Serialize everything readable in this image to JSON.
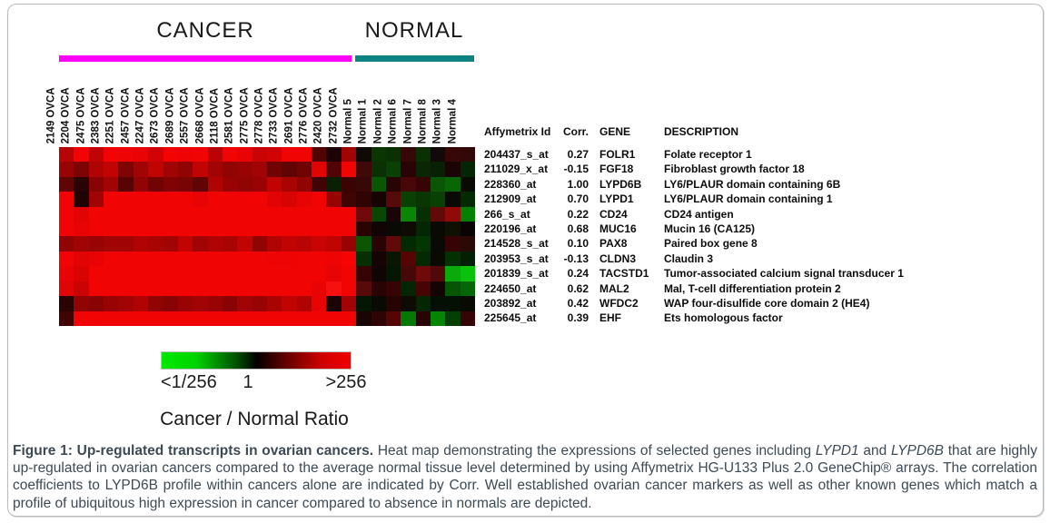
{
  "figure": {
    "group_labels": {
      "cancer": "CANCER",
      "normal": "NORMAL"
    },
    "group_colors": {
      "cancer_bar": "#ff00ff",
      "normal_bar": "#0f8282"
    },
    "table": {
      "headers": [
        "Affymetrix Id",
        "Corr.",
        "GENE",
        "DESCRIPTION"
      ],
      "rows": [
        {
          "id": "204437_s_at",
          "corr": "0.27",
          "gene": "FOLR1",
          "description": "Folate receptor 1"
        },
        {
          "id": "211029_x_at",
          "corr": "-0.15",
          "gene": "FGF18",
          "description": "Fibroblast growth factor 18"
        },
        {
          "id": "228360_at",
          "corr": "1.00",
          "gene": "LYPD6B",
          "description": "LY6/PLAUR domain containing 6B"
        },
        {
          "id": "212909_at",
          "corr": "0.70",
          "gene": "LYPD1",
          "description": "LY6/PLAUR domain containing 1"
        },
        {
          "id": "266_s_at",
          "corr": "0.22",
          "gene": "CD24",
          "description": "CD24 antigen"
        },
        {
          "id": "220196_at",
          "corr": "0.68",
          "gene": "MUC16",
          "description": "Mucin 16 (CA125)"
        },
        {
          "id": "214528_s_at",
          "corr": "0.10",
          "gene": "PAX8",
          "description": "Paired box gene 8"
        },
        {
          "id": "203953_s_at",
          "corr": "-0.13",
          "gene": "CLDN3",
          "description": "Claudin 3"
        },
        {
          "id": "201839_s_at",
          "corr": "0.24",
          "gene": "TACSTD1",
          "description": "Tumor-associated calcium signal transducer 1"
        },
        {
          "id": "224650_at",
          "corr": "0.62",
          "gene": "MAL2",
          "description": "Mal, T-cell differentiation protein 2"
        },
        {
          "id": "203892_at",
          "corr": "0.42",
          "gene": "WFDC2",
          "description": "WAP four-disulfide core domain 2 (HE4)"
        },
        {
          "id": "225645_at",
          "corr": "0.39",
          "gene": "EHF",
          "description": "Ets homologous factor"
        }
      ]
    },
    "scale": {
      "left_label": "<1/256",
      "mid_label": "1",
      "right_label": ">256",
      "title": "Cancer / Normal Ratio",
      "gradient": [
        "#00e800 0%",
        "#00d400 18%",
        "#004d00 40%",
        "#000000 50%",
        "#4d0000 62%",
        "#cc0000 84%",
        "#f20000 100%"
      ]
    },
    "caption": {
      "segments": [
        {
          "text": "Figure 1: Up-regulated transcripts in ovarian cancers.",
          "style": "bold"
        },
        {
          "text": " Heat map demonstrating the expressions of selected genes including ",
          "style": "normal"
        },
        {
          "text": "LYPD1",
          "style": "italic"
        },
        {
          "text": " and ",
          "style": "normal"
        },
        {
          "text": "LYPD6B",
          "style": "italic"
        },
        {
          "text": " that are highly up-regulated in ovarian cancers compared to the average normal tissue level determined by using Affymetrix HG-U133 Plus 2.0 GeneChip® arrays. The correlation coefficients to LYPD6B profile within cancers alone are indicated by Corr. Well established ovarian cancer markers as well as other known genes which match a profile of ubiquitous high expression in cancer compared to absence in normals are depicted.",
          "style": "normal"
        }
      ]
    }
  },
  "chart_data": {
    "type": "heatmap",
    "columns": [
      "2149 OVCA",
      "2204 OVCA",
      "2475 OVCA",
      "2383 OVCA",
      "2251 OVCA",
      "2457 OVCA",
      "2247 OVCA",
      "2673 OVCA",
      "2689 OVCA",
      "2557 OVCA",
      "2668 OVCA",
      "2118 OVCA",
      "2581 OVCA",
      "2775 OVCA",
      "2778 OVCA",
      "2733 OVCA",
      "2691 OVCA",
      "2776 OVCA",
      "2420 OVCA",
      "2732 OVCA",
      "Normal 5",
      "Normal 1",
      "Normal 2",
      "Normal 6",
      "Normal 7",
      "Normal 8",
      "Normal 3",
      "Normal 4"
    ],
    "column_groups": {
      "CANCER": 20,
      "NORMAL": 8
    },
    "rows": [
      "FOLR1",
      "FGF18",
      "LYPD6B",
      "LYPD1",
      "CD24",
      "MUC16",
      "PAX8",
      "CLDN3",
      "TACSTD1",
      "MAL2",
      "WFDC2",
      "EHF"
    ],
    "value_scale": {
      "min_label": "<1/256",
      "center_label": "1",
      "max_label": ">256",
      "title": "Cancer / Normal Ratio",
      "low_color": "#00e800",
      "mid_color": "#000000",
      "high_color": "#f20000"
    },
    "cell_colors": [
      [
        "#b80404",
        "#f20404",
        "#c00404",
        "#f20404",
        "#ee0404",
        "#e80404",
        "#d00404",
        "#f20404",
        "#ee0404",
        "#f00404",
        "#b80404",
        "#f00404",
        "#e80404",
        "#c80404",
        "#d00404",
        "#f00404",
        "#f00404",
        "#500404",
        "#1c0404",
        "#a00404",
        "#100a04",
        "#0a3604",
        "#0a3004",
        "#380808",
        "#0a3004",
        "#120a0a",
        "#380808",
        "#320808"
      ],
      [
        "#980404",
        "#7c0404",
        "#b00404",
        "#c00404",
        "#800404",
        "#a00404",
        "#c00404",
        "#a00404",
        "#900404",
        "#c00404",
        "#a00404",
        "#900404",
        "#980404",
        "#a00404",
        "#700404",
        "#600404",
        "#700404",
        "#e00404",
        "#500404",
        "#f00404",
        "#400808",
        "#0a3004",
        "#0a4004",
        "#2a0404",
        "#0a2604",
        "#0a2004",
        "#1a0404",
        "#042604"
      ],
      [
        "#600404",
        "#2a0404",
        "#880404",
        "#a00404",
        "#580404",
        "#900404",
        "#700404",
        "#800404",
        "#780404",
        "#600404",
        "#b00404",
        "#980404",
        "#900404",
        "#980404",
        "#c00404",
        "#a80404",
        "#900404",
        "#400404",
        "#0a2004",
        "#3a0404",
        "#360808",
        "#0a5604",
        "#280404",
        "#460808",
        "#360404",
        "#0a5604",
        "#0a6604",
        "#0a0a04"
      ],
      [
        "#f00404",
        "#200404",
        "#a00404",
        "#f00404",
        "#f00404",
        "#f00404",
        "#f00404",
        "#f00404",
        "#f00404",
        "#e80404",
        "#f00404",
        "#f00404",
        "#f00404",
        "#f00404",
        "#e00404",
        "#d80404",
        "#e80404",
        "#f00404",
        "#980404",
        "#400404",
        "#300404",
        "#160404",
        "#560a0a",
        "#0a4004",
        "#0a3604",
        "#0a4004",
        "#0a0a04",
        "#042a04"
      ],
      [
        "#f00404",
        "#e00404",
        "#f00404",
        "#f00404",
        "#f00404",
        "#f00404",
        "#f00404",
        "#f00404",
        "#f00404",
        "#f00404",
        "#f00404",
        "#f00404",
        "#f00404",
        "#f00404",
        "#f00404",
        "#f00404",
        "#f00404",
        "#f00404",
        "#f00404",
        "#f00404",
        "#700a0a",
        "#0a4604",
        "#1a0404",
        "#0a8604",
        "#043004",
        "#600a0a",
        "#900a0a",
        "#048004"
      ],
      [
        "#f00404",
        "#e80404",
        "#f00404",
        "#f00404",
        "#f00404",
        "#f00404",
        "#f00404",
        "#f00404",
        "#f00404",
        "#f00404",
        "#f00404",
        "#f00404",
        "#f00404",
        "#f00404",
        "#f00404",
        "#f00404",
        "#f00404",
        "#f00404",
        "#f00404",
        "#f00404",
        "#2a0404",
        "#100404",
        "#0a0a04",
        "#100a04",
        "#042604",
        "#0a0a04",
        "#101004",
        "#0a0404"
      ],
      [
        "#900404",
        "#a00404",
        "#980404",
        "#a00404",
        "#a00404",
        "#b00404",
        "#a80404",
        "#a00404",
        "#c00404",
        "#a00404",
        "#b00404",
        "#a80404",
        "#c00404",
        "#900404",
        "#b00404",
        "#c00404",
        "#b80404",
        "#c80404",
        "#c00404",
        "#980404",
        "#0a5604",
        "#2a0404",
        "#600a0a",
        "#042a04",
        "#043604",
        "#0a0a04",
        "#360404",
        "#2a0a04"
      ],
      [
        "#f00404",
        "#e00404",
        "#e80404",
        "#f00404",
        "#f00404",
        "#f00404",
        "#f00404",
        "#f00404",
        "#f00404",
        "#f00404",
        "#f00404",
        "#f00404",
        "#f00404",
        "#f00404",
        "#ee0404",
        "#ee0404",
        "#f00404",
        "#f00404",
        "#ee0404",
        "#f60404",
        "#043004",
        "#160404",
        "#0a1604",
        "#560404",
        "#042a04",
        "#0a0a04",
        "#043004",
        "#042004"
      ],
      [
        "#e80404",
        "#d80404",
        "#f00404",
        "#f00404",
        "#f00404",
        "#f00404",
        "#f00404",
        "#f00404",
        "#f00404",
        "#f00404",
        "#f00404",
        "#f00404",
        "#f00404",
        "#f00404",
        "#f00404",
        "#f00404",
        "#f00404",
        "#f00404",
        "#e80404",
        "#f00404",
        "#360404",
        "#100404",
        "#041604",
        "#460808",
        "#700a0a",
        "#500808",
        "#0aaa0a",
        "#0ac20a"
      ],
      [
        "#e00404",
        "#c80404",
        "#f00404",
        "#f00404",
        "#f00404",
        "#f00404",
        "#f00404",
        "#f00404",
        "#f00404",
        "#f00404",
        "#f00404",
        "#f00404",
        "#f00404",
        "#f00404",
        "#f00404",
        "#f00404",
        "#f00404",
        "#e80404",
        "#f61010",
        "#f00404",
        "#560a0a",
        "#2a0404",
        "#360404",
        "#042604",
        "#460404",
        "#160404",
        "#045604",
        "#046604"
      ],
      [
        "#2a0404",
        "#900404",
        "#880404",
        "#980404",
        "#a00404",
        "#b00404",
        "#900404",
        "#880404",
        "#980404",
        "#a00404",
        "#980404",
        "#880404",
        "#a00404",
        "#980404",
        "#a80404",
        "#c00404",
        "#b00404",
        "#e80404",
        "#1a0404",
        "#a00404",
        "#041604",
        "#0a0a04",
        "#260404",
        "#100a04",
        "#042604",
        "#041004",
        "#041004",
        "#0a0a04"
      ],
      [
        "#400404",
        "#f00404",
        "#f00404",
        "#f00404",
        "#f00404",
        "#f00404",
        "#f00404",
        "#f00404",
        "#f00404",
        "#f00404",
        "#f00404",
        "#f00404",
        "#f00404",
        "#f00404",
        "#f00404",
        "#f00404",
        "#f00404",
        "#f00404",
        "#f00404",
        "#f00404",
        "#1a0404",
        "#300404",
        "#560404",
        "#047a04",
        "#2a0404",
        "#048604",
        "#044004",
        "#360404"
      ]
    ]
  }
}
